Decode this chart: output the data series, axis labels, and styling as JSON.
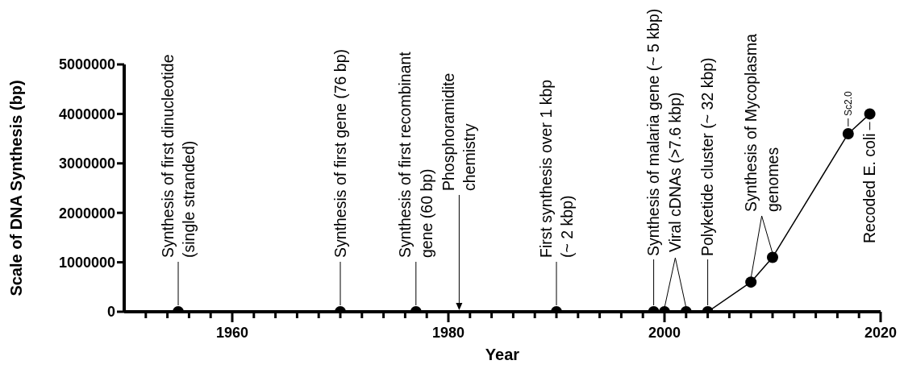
{
  "chart_data": {
    "type": "line",
    "xlabel": "Year",
    "ylabel": "Scale of DNA Synthesis (bp)",
    "x": [
      1955,
      1970,
      1977,
      1990,
      1999,
      2000,
      2002,
      2004,
      2008,
      2010,
      2017,
      2019
    ],
    "series": [
      {
        "color": "#000000",
        "values": [
          0,
          0,
          0,
          0,
          0,
          0,
          0,
          0,
          600000,
          1100000,
          3600000,
          4000000
        ]
      }
    ],
    "marker": "circle",
    "line_style": "solid",
    "xlim": [
      1950,
      2020
    ],
    "xticks": [
      {
        "value": 1952,
        "label": null
      },
      {
        "value": 1954,
        "label": null
      },
      {
        "value": 1956,
        "label": null
      },
      {
        "value": 1958,
        "label": null
      },
      1960,
      {
        "value": 1962,
        "label": null
      },
      {
        "value": 1964,
        "label": null
      },
      {
        "value": 1966,
        "label": null
      },
      {
        "value": 1968,
        "label": null
      },
      {
        "value": 1970,
        "label": null
      },
      {
        "value": 1972,
        "label": null
      },
      {
        "value": 1974,
        "label": null
      },
      {
        "value": 1976,
        "label": null
      },
      {
        "value": 1978,
        "label": null
      },
      1980,
      {
        "value": 1982,
        "label": null
      },
      {
        "value": 1984,
        "label": null
      },
      {
        "value": 1986,
        "label": null
      },
      {
        "value": 1988,
        "label": null
      },
      {
        "value": 1990,
        "label": null
      },
      {
        "value": 1992,
        "label": null
      },
      {
        "value": 1994,
        "label": null
      },
      {
        "value": 1996,
        "label": null
      },
      {
        "value": 1998,
        "label": null
      },
      2000,
      {
        "value": 2002,
        "label": null
      },
      {
        "value": 2004,
        "label": null
      },
      {
        "value": 2006,
        "label": null
      },
      {
        "value": 2008,
        "label": null
      },
      {
        "value": 2010,
        "label": null
      },
      {
        "value": 2012,
        "label": null
      },
      {
        "value": 2014,
        "label": null
      },
      {
        "value": 2016,
        "label": null
      },
      {
        "value": 2018,
        "label": null
      },
      2020
    ],
    "ylim": [
      0,
      5000000
    ],
    "yticks": [
      0,
      1000000,
      2000000,
      3000000,
      4000000,
      5000000
    ],
    "annotations": [
      {
        "text": "Synthesis of first dinucleotide\n(single stranded)",
        "x": 1955,
        "y": 0
      },
      {
        "text": "Synthesis of first gene (76 bp)",
        "x": 1970,
        "y": 0
      },
      {
        "text": "Synthesis of first recombinant\ngene (60 bp)",
        "x": 1977,
        "y": 0
      },
      {
        "text": "Phosphoramidite\nchemistry",
        "x": 1981,
        "y": 0
      },
      {
        "text": "First synthesis over 1 kbp\n(~ 2 kbp)",
        "x": 1990,
        "y": 0
      },
      {
        "text": "Synthesis of malaria gene (~ 5 kbp)",
        "x": 1999,
        "y": 0
      },
      {
        "text": "Viral cDNAs (>7.6 kbp)",
        "x": 2000,
        "y": 0
      },
      {
        "text": "Polyketide cluster (~ 32 kbp)",
        "x": 2004,
        "y": 0
      },
      {
        "text": "Synthesis of Mycoplasma\ngenomes",
        "x": 2008,
        "y": 600000
      },
      {
        "text": "Sc2.0",
        "x": 2017,
        "y": 3600000
      },
      {
        "text": "Recoded E. coli",
        "x": 2019,
        "y": 4000000
      }
    ]
  }
}
